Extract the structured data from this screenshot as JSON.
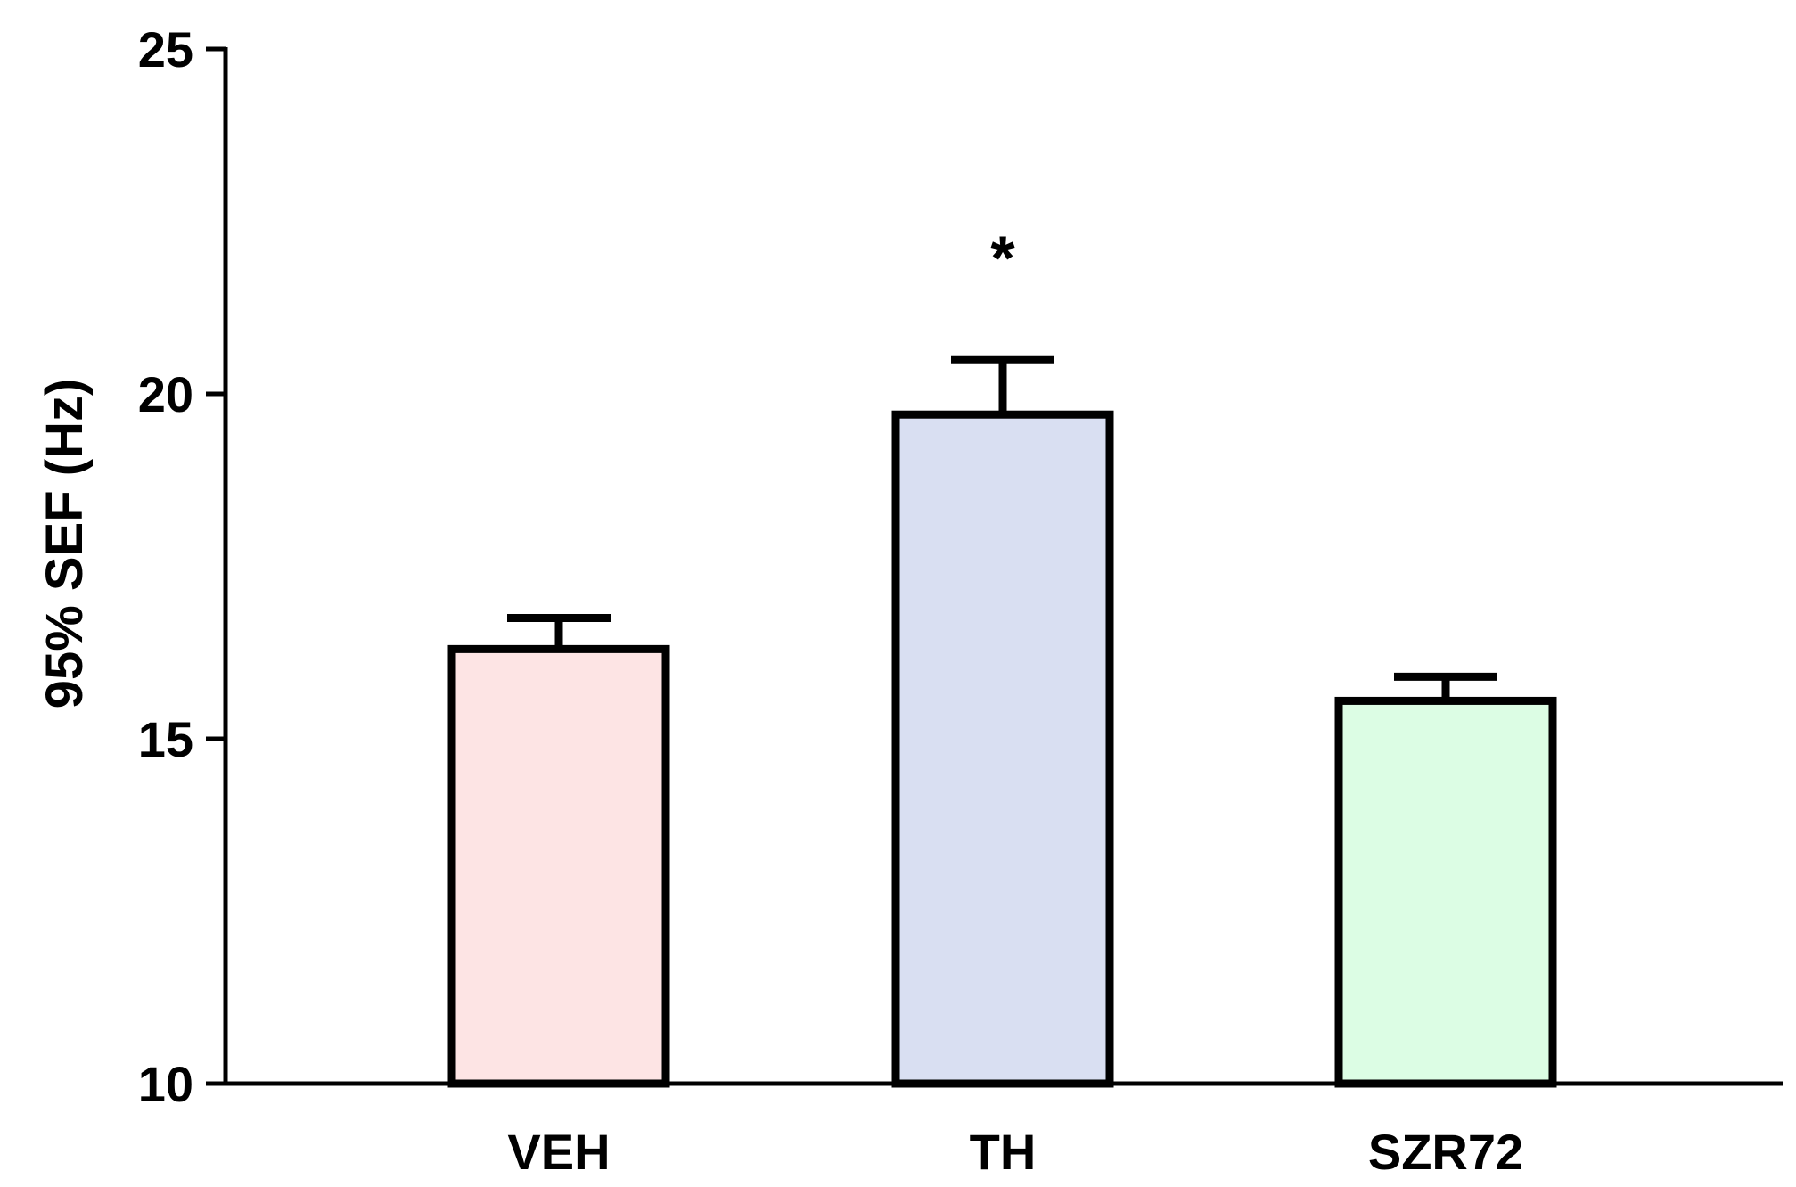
{
  "chart_data": {
    "type": "bar",
    "categories": [
      "VEH",
      "TH",
      "SZR72"
    ],
    "values": [
      16.3,
      19.7,
      15.55
    ],
    "errors": [
      0.45,
      0.8,
      0.35
    ],
    "colors": [
      "#fde4e4",
      "#d9dff2",
      "#dcfde4"
    ],
    "annotations": [
      "",
      "*",
      ""
    ],
    "ylabel": "95% SEF (Hz)",
    "ylim": [
      10,
      25
    ],
    "yticks": [
      "10",
      "15",
      "20",
      "25"
    ],
    "grid": false,
    "legend": "none"
  }
}
